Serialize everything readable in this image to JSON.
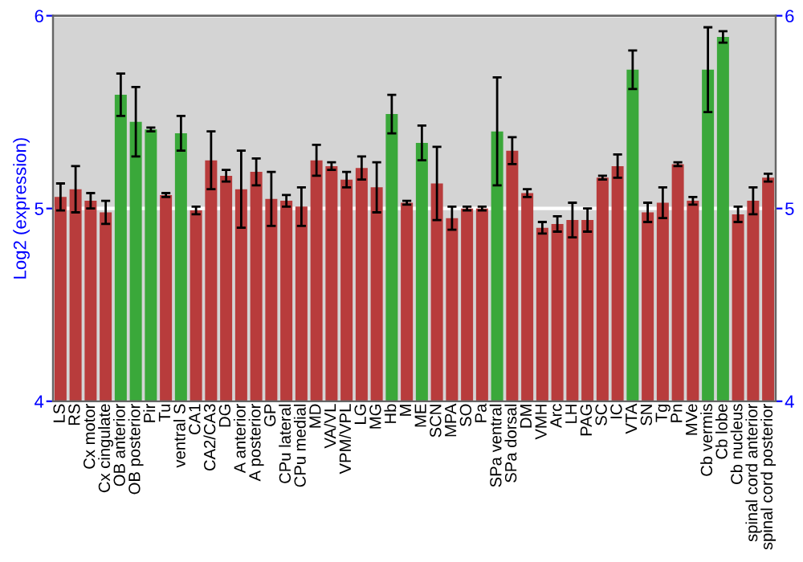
{
  "chart_data": {
    "type": "bar",
    "ylabel": "Log2 (expression)",
    "categories": [
      "LS",
      "RS",
      "Cx motor",
      "Cx cingulate",
      "OB anterior",
      "OB posterior",
      "Pir",
      "Tu",
      "ventral S",
      "CA1",
      "CA2/CA3",
      "DG",
      "A anterior",
      "A posterior",
      "GP",
      "CPu lateral",
      "CPu medial",
      "MD",
      "VA/VL",
      "VPM/VPL",
      "LG",
      "MG",
      "Hb",
      "M",
      "ME",
      "SCN",
      "MPA",
      "SO",
      "Pa",
      "SPa ventral",
      "SPa dorsal",
      "DM",
      "VMH",
      "Arc",
      "LH",
      "PAG",
      "SC",
      "IC",
      "VTA",
      "SN",
      "Tg",
      "Pn",
      "MVe",
      "Cb vermis",
      "Cb lobe",
      "Cb nucleus",
      "spinal cord anterior",
      "spinal cord posterior"
    ],
    "values": [
      5.06,
      5.1,
      5.04,
      4.98,
      5.59,
      5.45,
      5.41,
      5.07,
      5.39,
      4.99,
      5.25,
      5.17,
      5.1,
      5.19,
      5.05,
      5.04,
      5.01,
      5.25,
      5.22,
      5.15,
      5.21,
      5.11,
      5.49,
      5.03,
      5.34,
      5.13,
      4.95,
      5.0,
      5.0,
      5.4,
      5.3,
      5.08,
      4.9,
      4.92,
      4.94,
      4.94,
      5.16,
      5.22,
      5.72,
      4.98,
      5.03,
      5.23,
      5.04,
      5.72,
      5.89,
      4.97,
      5.04,
      5.16
    ],
    "errors": [
      0.07,
      0.12,
      0.04,
      0.06,
      0.11,
      0.18,
      0.01,
      0.01,
      0.09,
      0.02,
      0.15,
      0.03,
      0.2,
      0.07,
      0.14,
      0.03,
      0.1,
      0.08,
      0.02,
      0.04,
      0.06,
      0.13,
      0.1,
      0.01,
      0.09,
      0.19,
      0.06,
      0.01,
      0.01,
      0.28,
      0.07,
      0.02,
      0.03,
      0.04,
      0.09,
      0.06,
      0.01,
      0.06,
      0.1,
      0.05,
      0.08,
      0.01,
      0.02,
      0.22,
      0.03,
      0.04,
      0.07,
      0.02
    ],
    "colors": [
      "#b83c3c",
      "#b83c3c",
      "#b83c3c",
      "#b83c3c",
      "#3aa83a",
      "#3aa83a",
      "#3aa83a",
      "#b83c3c",
      "#3aa83a",
      "#b83c3c",
      "#b83c3c",
      "#b83c3c",
      "#b83c3c",
      "#b83c3c",
      "#b83c3c",
      "#b83c3c",
      "#b83c3c",
      "#b83c3c",
      "#b83c3c",
      "#b83c3c",
      "#b83c3c",
      "#b83c3c",
      "#3aa83a",
      "#b83c3c",
      "#3aa83a",
      "#b83c3c",
      "#b83c3c",
      "#b83c3c",
      "#b83c3c",
      "#3aa83a",
      "#b83c3c",
      "#b83c3c",
      "#b83c3c",
      "#b83c3c",
      "#b83c3c",
      "#b83c3c",
      "#b83c3c",
      "#b83c3c",
      "#3aa83a",
      "#b83c3c",
      "#b83c3c",
      "#b83c3c",
      "#b83c3c",
      "#3aa83a",
      "#3aa83a",
      "#b83c3c",
      "#b83c3c",
      "#b83c3c"
    ],
    "ylim": [
      4,
      6
    ],
    "yticks": [
      4,
      5,
      6
    ],
    "y2lim": [
      4,
      6
    ],
    "y2ticks": [
      4,
      5,
      6
    ],
    "grid": "y"
  }
}
